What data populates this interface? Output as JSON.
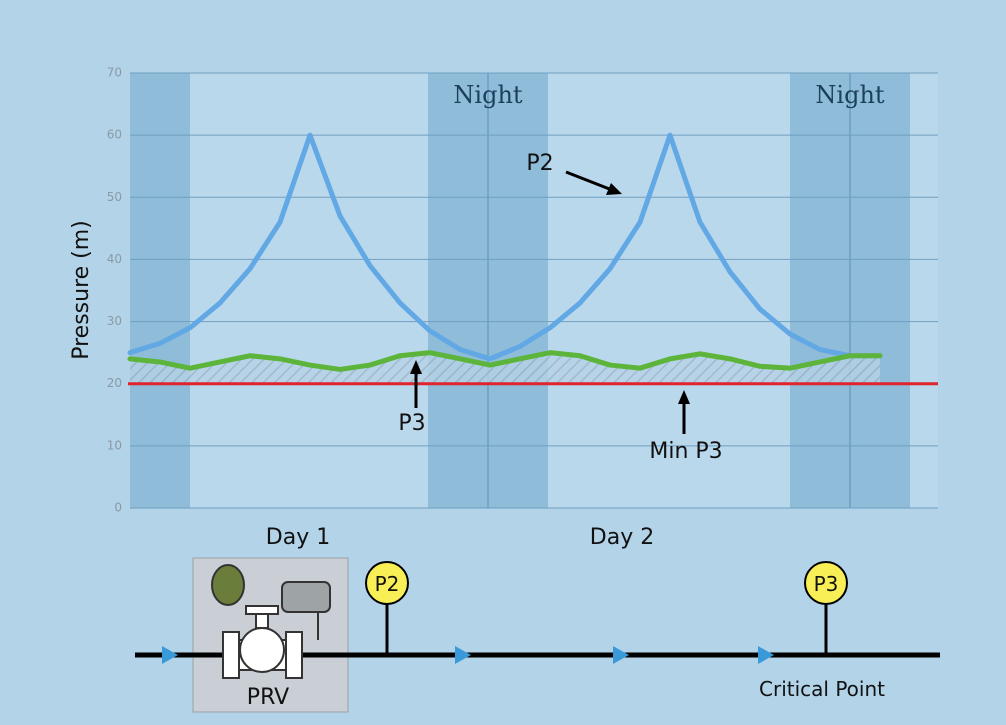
{
  "chart_data": {
    "type": "line",
    "y_label": "Pressure (m)",
    "ylim": [
      0,
      70
    ],
    "yticks": [
      0,
      10,
      20,
      30,
      40,
      50,
      60,
      70
    ],
    "grid": true,
    "night_label": "Night",
    "day_labels": [
      "Day 1",
      "Day 2"
    ],
    "categories": [
      null,
      null,
      null,
      null,
      null,
      null,
      null,
      null,
      null,
      null,
      null,
      null,
      null,
      null,
      null,
      null,
      null,
      null,
      null,
      null,
      null,
      null,
      null,
      null,
      null,
      null
    ],
    "series": [
      {
        "name": "P2",
        "color": "#62a8e4",
        "values": [
          25,
          26.5,
          29,
          33,
          38.5,
          46,
          60,
          47,
          39,
          33,
          28.5,
          25.5,
          24,
          26,
          29,
          33,
          38.5,
          46,
          60,
          46,
          38,
          32,
          28,
          25.5,
          24.5,
          24.5
        ]
      },
      {
        "name": "P3",
        "color": "#5db43a",
        "values": [
          24,
          23.5,
          22.5,
          23.5,
          24.5,
          24,
          23,
          22.3,
          23,
          24.5,
          25,
          24,
          23,
          24,
          25,
          24.5,
          23,
          22.5,
          24,
          24.8,
          24,
          22.8,
          22.5,
          23.5,
          24.5,
          24.5
        ]
      }
    ],
    "min_line": {
      "name": "Min P3",
      "value": 20,
      "color": "#e0232d"
    }
  },
  "diagram": {
    "valve_label": "PRV",
    "gauges": [
      "P2",
      "P3"
    ],
    "point_label": "Critical Point"
  }
}
